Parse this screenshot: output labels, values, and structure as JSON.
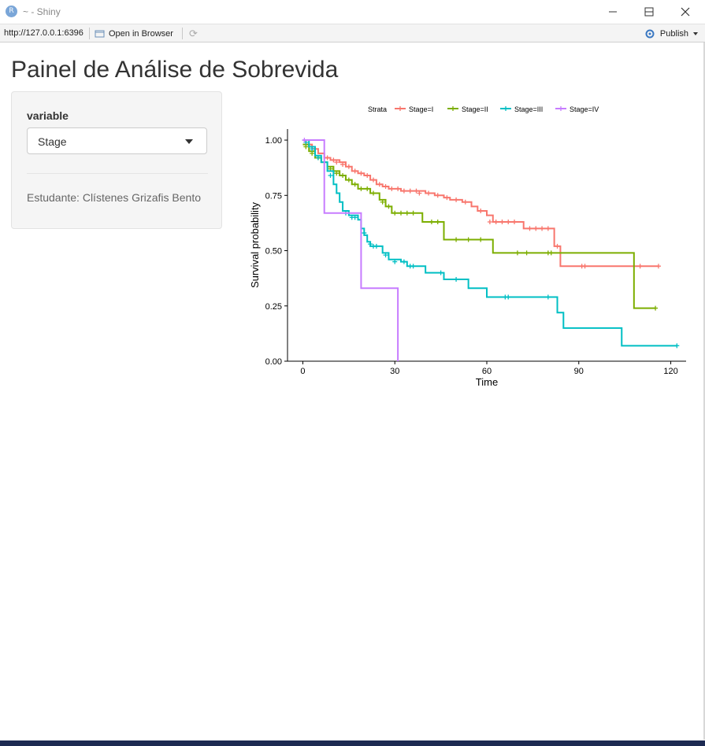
{
  "window": {
    "app_icon_letter": "R",
    "title": "~ - Shiny",
    "minimize": "—",
    "maximize": "☐",
    "close": "✕"
  },
  "toolbar": {
    "url": "http://127.0.0.1:6396",
    "open_browser": "Open in Browser",
    "publish": "Publish"
  },
  "page": {
    "title": "Painel de Análise de Sobrevida"
  },
  "sidebar": {
    "variable_label": "variable",
    "selected": "Stage",
    "student": "Estudante: Clístenes Grizafis Bento"
  },
  "chart_data": {
    "type": "line",
    "subtype": "kaplan-meier step",
    "legend_title": "Strata",
    "legend_position": "top",
    "xlabel": "Time",
    "ylabel": "Survival probability",
    "xlim": [
      -5,
      125
    ],
    "ylim": [
      0,
      1.05
    ],
    "xticks": [
      0,
      30,
      60,
      90,
      120
    ],
    "yticks": [
      0.0,
      0.25,
      0.5,
      0.75,
      1.0
    ],
    "ytick_labels": [
      "0.00",
      "0.25",
      "0.50",
      "0.75",
      "1.00"
    ],
    "grid": false,
    "series": [
      {
        "name": "Stage=I",
        "color": "#F8766D",
        "steps": [
          [
            0,
            1.0
          ],
          [
            1,
            0.98
          ],
          [
            3,
            0.96
          ],
          [
            5,
            0.94
          ],
          [
            7,
            0.92
          ],
          [
            9,
            0.91
          ],
          [
            12,
            0.9
          ],
          [
            14,
            0.88
          ],
          [
            16,
            0.86
          ],
          [
            18,
            0.85
          ],
          [
            20,
            0.84
          ],
          [
            22,
            0.82
          ],
          [
            24,
            0.8
          ],
          [
            26,
            0.79
          ],
          [
            28,
            0.78
          ],
          [
            32,
            0.77
          ],
          [
            40,
            0.76
          ],
          [
            43,
            0.75
          ],
          [
            46,
            0.74
          ],
          [
            48,
            0.73
          ],
          [
            52,
            0.72
          ],
          [
            55,
            0.7
          ],
          [
            57,
            0.68
          ],
          [
            60,
            0.66
          ],
          [
            62,
            0.63
          ],
          [
            72,
            0.6
          ],
          [
            82,
            0.52
          ],
          [
            84,
            0.43
          ],
          [
            116,
            0.43
          ]
        ],
        "censored": [
          [
            4,
            0.96
          ],
          [
            8,
            0.92
          ],
          [
            10,
            0.91
          ],
          [
            11,
            0.9
          ],
          [
            13,
            0.89
          ],
          [
            15,
            0.88
          ],
          [
            17,
            0.86
          ],
          [
            19,
            0.85
          ],
          [
            21,
            0.84
          ],
          [
            23,
            0.82
          ],
          [
            25,
            0.8
          ],
          [
            27,
            0.79
          ],
          [
            29,
            0.78
          ],
          [
            31,
            0.78
          ],
          [
            33,
            0.77
          ],
          [
            35,
            0.77
          ],
          [
            37,
            0.77
          ],
          [
            38,
            0.76
          ],
          [
            41,
            0.76
          ],
          [
            44,
            0.75
          ],
          [
            47,
            0.74
          ],
          [
            50,
            0.73
          ],
          [
            53,
            0.72
          ],
          [
            58,
            0.68
          ],
          [
            61,
            0.63
          ],
          [
            63,
            0.63
          ],
          [
            65,
            0.63
          ],
          [
            67,
            0.63
          ],
          [
            69,
            0.63
          ],
          [
            74,
            0.6
          ],
          [
            76,
            0.6
          ],
          [
            78,
            0.6
          ],
          [
            80,
            0.6
          ],
          [
            83,
            0.52
          ],
          [
            91,
            0.43
          ],
          [
            92,
            0.43
          ],
          [
            110,
            0.43
          ],
          [
            116,
            0.43
          ]
        ]
      },
      {
        "name": "Stage=II",
        "color": "#7CAE00",
        "steps": [
          [
            0,
            0.98
          ],
          [
            2,
            0.95
          ],
          [
            4,
            0.92
          ],
          [
            6,
            0.9
          ],
          [
            8,
            0.88
          ],
          [
            10,
            0.86
          ],
          [
            12,
            0.84
          ],
          [
            14,
            0.82
          ],
          [
            16,
            0.8
          ],
          [
            18,
            0.78
          ],
          [
            22,
            0.76
          ],
          [
            25,
            0.73
          ],
          [
            27,
            0.7
          ],
          [
            29,
            0.67
          ],
          [
            39,
            0.63
          ],
          [
            46,
            0.55
          ],
          [
            62,
            0.49
          ],
          [
            108,
            0.24
          ],
          [
            115,
            0.24
          ]
        ],
        "censored": [
          [
            1,
            0.97
          ],
          [
            3,
            0.94
          ],
          [
            5,
            0.92
          ],
          [
            7,
            0.9
          ],
          [
            9,
            0.87
          ],
          [
            11,
            0.85
          ],
          [
            13,
            0.84
          ],
          [
            15,
            0.82
          ],
          [
            17,
            0.8
          ],
          [
            19,
            0.78
          ],
          [
            21,
            0.78
          ],
          [
            23,
            0.76
          ],
          [
            26,
            0.72
          ],
          [
            28,
            0.7
          ],
          [
            30,
            0.67
          ],
          [
            32,
            0.67
          ],
          [
            34,
            0.67
          ],
          [
            36,
            0.67
          ],
          [
            42,
            0.63
          ],
          [
            44,
            0.63
          ],
          [
            50,
            0.55
          ],
          [
            54,
            0.55
          ],
          [
            58,
            0.55
          ],
          [
            70,
            0.49
          ],
          [
            73,
            0.49
          ],
          [
            80,
            0.49
          ],
          [
            81,
            0.49
          ],
          [
            115,
            0.24
          ]
        ]
      },
      {
        "name": "Stage=III",
        "color": "#00BFC4",
        "steps": [
          [
            0,
            1.0
          ],
          [
            2,
            0.97
          ],
          [
            4,
            0.93
          ],
          [
            6,
            0.9
          ],
          [
            8,
            0.86
          ],
          [
            10,
            0.8
          ],
          [
            11,
            0.76
          ],
          [
            12,
            0.72
          ],
          [
            13,
            0.68
          ],
          [
            15,
            0.66
          ],
          [
            18,
            0.64
          ],
          [
            19,
            0.6
          ],
          [
            20,
            0.57
          ],
          [
            21,
            0.54
          ],
          [
            22,
            0.52
          ],
          [
            26,
            0.49
          ],
          [
            28,
            0.46
          ],
          [
            32,
            0.45
          ],
          [
            34,
            0.43
          ],
          [
            40,
            0.4
          ],
          [
            46,
            0.37
          ],
          [
            54,
            0.33
          ],
          [
            60,
            0.29
          ],
          [
            83,
            0.22
          ],
          [
            85,
            0.15
          ],
          [
            104,
            0.07
          ],
          [
            122,
            0.07
          ]
        ],
        "censored": [
          [
            1,
            0.99
          ],
          [
            3,
            0.96
          ],
          [
            5,
            0.92
          ],
          [
            9,
            0.84
          ],
          [
            14,
            0.67
          ],
          [
            16,
            0.65
          ],
          [
            17,
            0.65
          ],
          [
            20,
            0.58
          ],
          [
            22,
            0.53
          ],
          [
            23,
            0.52
          ],
          [
            24,
            0.52
          ],
          [
            27,
            0.48
          ],
          [
            30,
            0.45
          ],
          [
            33,
            0.45
          ],
          [
            35,
            0.43
          ],
          [
            36,
            0.43
          ],
          [
            45,
            0.4
          ],
          [
            50,
            0.37
          ],
          [
            66,
            0.29
          ],
          [
            67,
            0.29
          ],
          [
            80,
            0.29
          ],
          [
            122,
            0.07
          ]
        ]
      },
      {
        "name": "Stage=IV",
        "color": "#C77CFF",
        "steps": [
          [
            0,
            1.0
          ],
          [
            7,
            0.67
          ],
          [
            19,
            0.33
          ],
          [
            31,
            0.0
          ]
        ],
        "censored": [
          [
            0.5,
            1.0
          ]
        ]
      }
    ]
  }
}
